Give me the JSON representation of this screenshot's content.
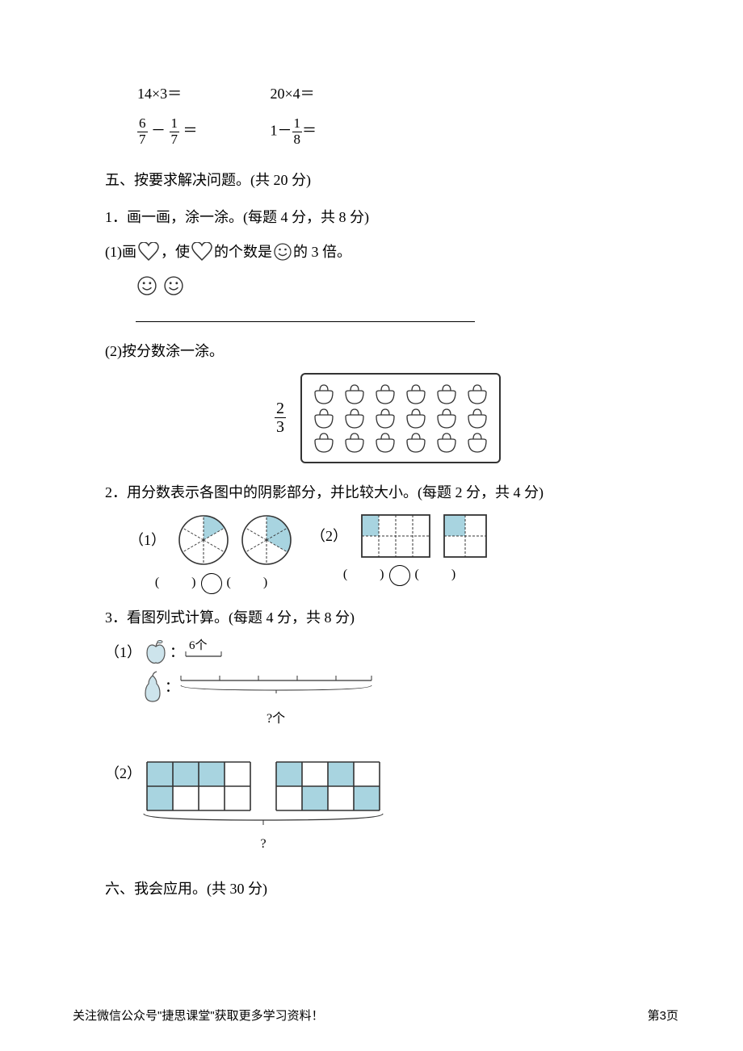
{
  "math_row1": {
    "e1": "14×3＝",
    "e2": "20×4＝"
  },
  "math_row2": {
    "f1_num1": "6",
    "f1_den1": "7",
    "f1_op": "－",
    "f1_num2": "1",
    "f1_den2": "7",
    "f1_eq": "＝",
    "f2_pre": "1－",
    "f2_num": "1",
    "f2_den": "8",
    "f2_eq": "＝"
  },
  "section5": {
    "title": "五、按要求解决问题。(共 20 分)"
  },
  "q1": {
    "title": "1．画一画，涂一涂。(每题 4 分，共 8 分)",
    "sub1_pre": "(1)画",
    "sub1_mid1": "，使",
    "sub1_mid2": "的个数是",
    "sub1_post": "的 3 倍。",
    "sub2": "(2)按分数涂一涂。",
    "frac_num": "2",
    "frac_den": "3"
  },
  "q2": {
    "title": "2．用分数表示各图中的阴影部分，并比较大小。(每题 2 分，共 4 分)",
    "label1": "（1）",
    "label2": "（2）",
    "paren_l": "(",
    "paren_r": ")",
    "pie1": {
      "slices": 6,
      "shaded": [
        0
      ],
      "shade_color": "#a8d4e0"
    },
    "pie2": {
      "slices": 6,
      "shaded": [
        0,
        1
      ],
      "shade_color": "#a8d4e0"
    },
    "sq1": {
      "cols": 4,
      "rows": 2,
      "shaded": [
        [
          0,
          0
        ]
      ],
      "shade_color": "#a8d4e0"
    },
    "sq2": {
      "cols": 2,
      "rows": 2,
      "shaded": [
        [
          0,
          0
        ]
      ],
      "shade_color": "#a8d4e0"
    }
  },
  "q3": {
    "title": "3．看图列式计算。(每题 4 分，共 8 分)",
    "label1": "（1）",
    "label2": "（2）",
    "apple_count": "6个",
    "pear_q": "?个",
    "g1": {
      "cols": 4,
      "rows": 2,
      "shaded": [
        [
          0,
          0
        ],
        [
          1,
          0
        ],
        [
          2,
          0
        ],
        [
          0,
          1
        ]
      ],
      "shade_color": "#a8d4e0"
    },
    "g2": {
      "cols": 4,
      "rows": 2,
      "shaded": [
        [
          0,
          0
        ],
        [
          2,
          0
        ],
        [
          1,
          1
        ],
        [
          3,
          1
        ]
      ],
      "shade_color": "#a8d4e0"
    },
    "brace_q": "?"
  },
  "section6": {
    "title": "六、我会应用。(共 30 分)"
  },
  "footer": {
    "left": "关注微信公众号\"捷思课堂\"获取更多学习资料！",
    "right": "第3页"
  },
  "colors": {
    "shade": "#a8d4e0",
    "line": "#333333"
  }
}
